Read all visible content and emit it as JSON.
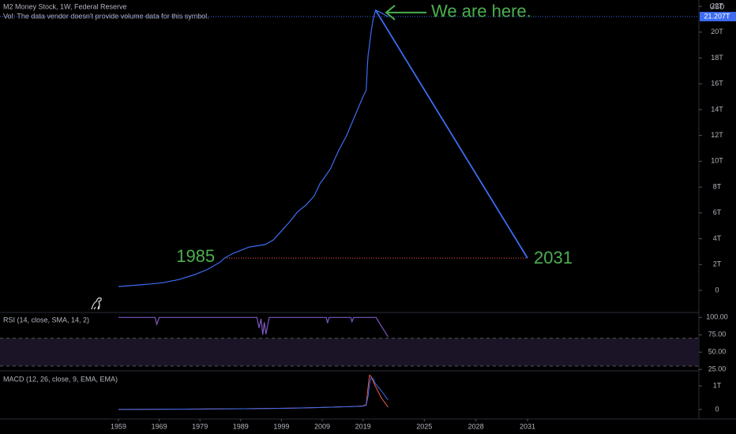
{
  "chart_data": [
    {
      "type": "line",
      "title": "M2 Money Stock, 1W, Federal Reserve",
      "subtitle": "Vol: The data vendor doesn't provide volume data for this symbol.",
      "y_axis_label": "USD",
      "color": "#3d6cf2",
      "x": [
        1959,
        1963,
        1967,
        1970,
        1974,
        1978,
        1981,
        1984,
        1985,
        1987,
        1989,
        1991,
        1993,
        1995,
        1997,
        1999,
        2001,
        2003,
        2005,
        2007,
        2008.5,
        2009,
        2011,
        2013,
        2015,
        2017,
        2019,
        2019.8,
        2020.1,
        2020.3,
        2020.6,
        2021,
        2021.5,
        2022.1,
        2022.5,
        2022.9
      ],
      "values": [
        0.3,
        0.4,
        0.5,
        0.6,
        0.85,
        1.25,
        1.65,
        2.2,
        2.5,
        2.85,
        3.1,
        3.35,
        3.45,
        3.55,
        3.9,
        4.6,
        5.3,
        6.1,
        6.6,
        7.3,
        8.3,
        8.5,
        9.4,
        10.8,
        12.0,
        13.5,
        15.0,
        15.5,
        17.5,
        18.3,
        19.0,
        20.0,
        21.0,
        21.7,
        21.5,
        21.2
      ],
      "projection": {
        "color": "#3d6cf2",
        "x": [
          2022.1,
          2031
        ],
        "values": [
          21.7,
          2.5
        ]
      },
      "level_line": {
        "color": "#e0483e",
        "x": [
          1985,
          2031
        ],
        "value": 2.5
      },
      "annotations": [
        {
          "text": "We are here.",
          "color": "#4caf50"
        },
        {
          "text": "1985",
          "color": "#4caf50"
        },
        {
          "text": "2031",
          "color": "#4caf50"
        }
      ],
      "last_value": {
        "value": 21.207,
        "label": "21.207T"
      },
      "ylim": [
        -1.65,
        22.49
      ],
      "yticks": [
        0,
        {
          "value": 2,
          "label": "2T"
        },
        {
          "value": 4,
          "label": "4T"
        },
        {
          "value": 6,
          "label": "6T"
        },
        {
          "value": 8,
          "label": "8T"
        },
        {
          "value": 10,
          "label": "10T"
        },
        {
          "value": 12,
          "label": "12T"
        },
        {
          "value": 14,
          "label": "14T"
        },
        {
          "value": 16,
          "label": "16T"
        },
        {
          "value": 18,
          "label": "18T"
        },
        {
          "value": 20,
          "label": "20T"
        },
        {
          "value": 22,
          "label": "22T"
        }
      ],
      "xticks": [
        1959,
        1969,
        1979,
        1989,
        1999,
        2009,
        2019,
        2025,
        2028,
        2031
      ]
    },
    {
      "type": "line",
      "title": "RSI (14, close, SMA, 14, 2)",
      "color": "#7e57c2",
      "x": [
        1959,
        1968,
        1968.4,
        1969,
        1993,
        1993.5,
        1994,
        1994.4,
        1994.8,
        1995.2,
        1996,
        2010,
        2010.3,
        2010.7,
        2016,
        2016.3,
        2016.7,
        2022.2,
        2022.9
      ],
      "values": [
        100,
        100,
        90,
        100,
        100,
        85,
        98,
        75,
        93,
        76,
        100,
        100,
        92,
        100,
        100,
        94,
        100,
        100,
        72
      ],
      "band": [
        30,
        70
      ],
      "ylim": [
        23,
        106
      ],
      "yticks": [
        {
          "value": 100,
          "label": "100.00"
        },
        {
          "value": 75,
          "label": "75.00"
        },
        {
          "value": 50,
          "label": "50.00"
        },
        {
          "value": 25,
          "label": "25.00"
        }
      ]
    },
    {
      "type": "line",
      "title": "MACD (12, 26, close, 9, EMA, EMA)",
      "series": [
        {
          "color": "#f05a4a",
          "x": [
            1959,
            1980,
            1990,
            2000,
            2008,
            2012,
            2016,
            2019,
            2019.8,
            2020.3,
            2020.6,
            2021,
            2021.5,
            2022,
            2022.5,
            2022.9
          ],
          "values": [
            0.0,
            0.02,
            0.03,
            0.05,
            0.08,
            0.1,
            0.12,
            0.15,
            0.2,
            1.0,
            1.45,
            1.4,
            1.2,
            1.0,
            0.5,
            0.1
          ]
        },
        {
          "color": "#3d6cf2",
          "x": [
            1959,
            1980,
            1990,
            2000,
            2008,
            2012,
            2016,
            2019,
            2019.8,
            2020.3,
            2020.6,
            2021,
            2021.5,
            2022,
            2022.5,
            2022.9
          ],
          "values": [
            0.0,
            0.02,
            0.03,
            0.05,
            0.08,
            0.1,
            0.12,
            0.14,
            0.18,
            0.6,
            1.1,
            1.35,
            1.3,
            1.1,
            0.8,
            0.4
          ]
        }
      ],
      "ylim": [
        -0.37,
        1.6
      ],
      "yticks": [
        {
          "value": 1,
          "label": "1T"
        },
        0
      ]
    }
  ]
}
